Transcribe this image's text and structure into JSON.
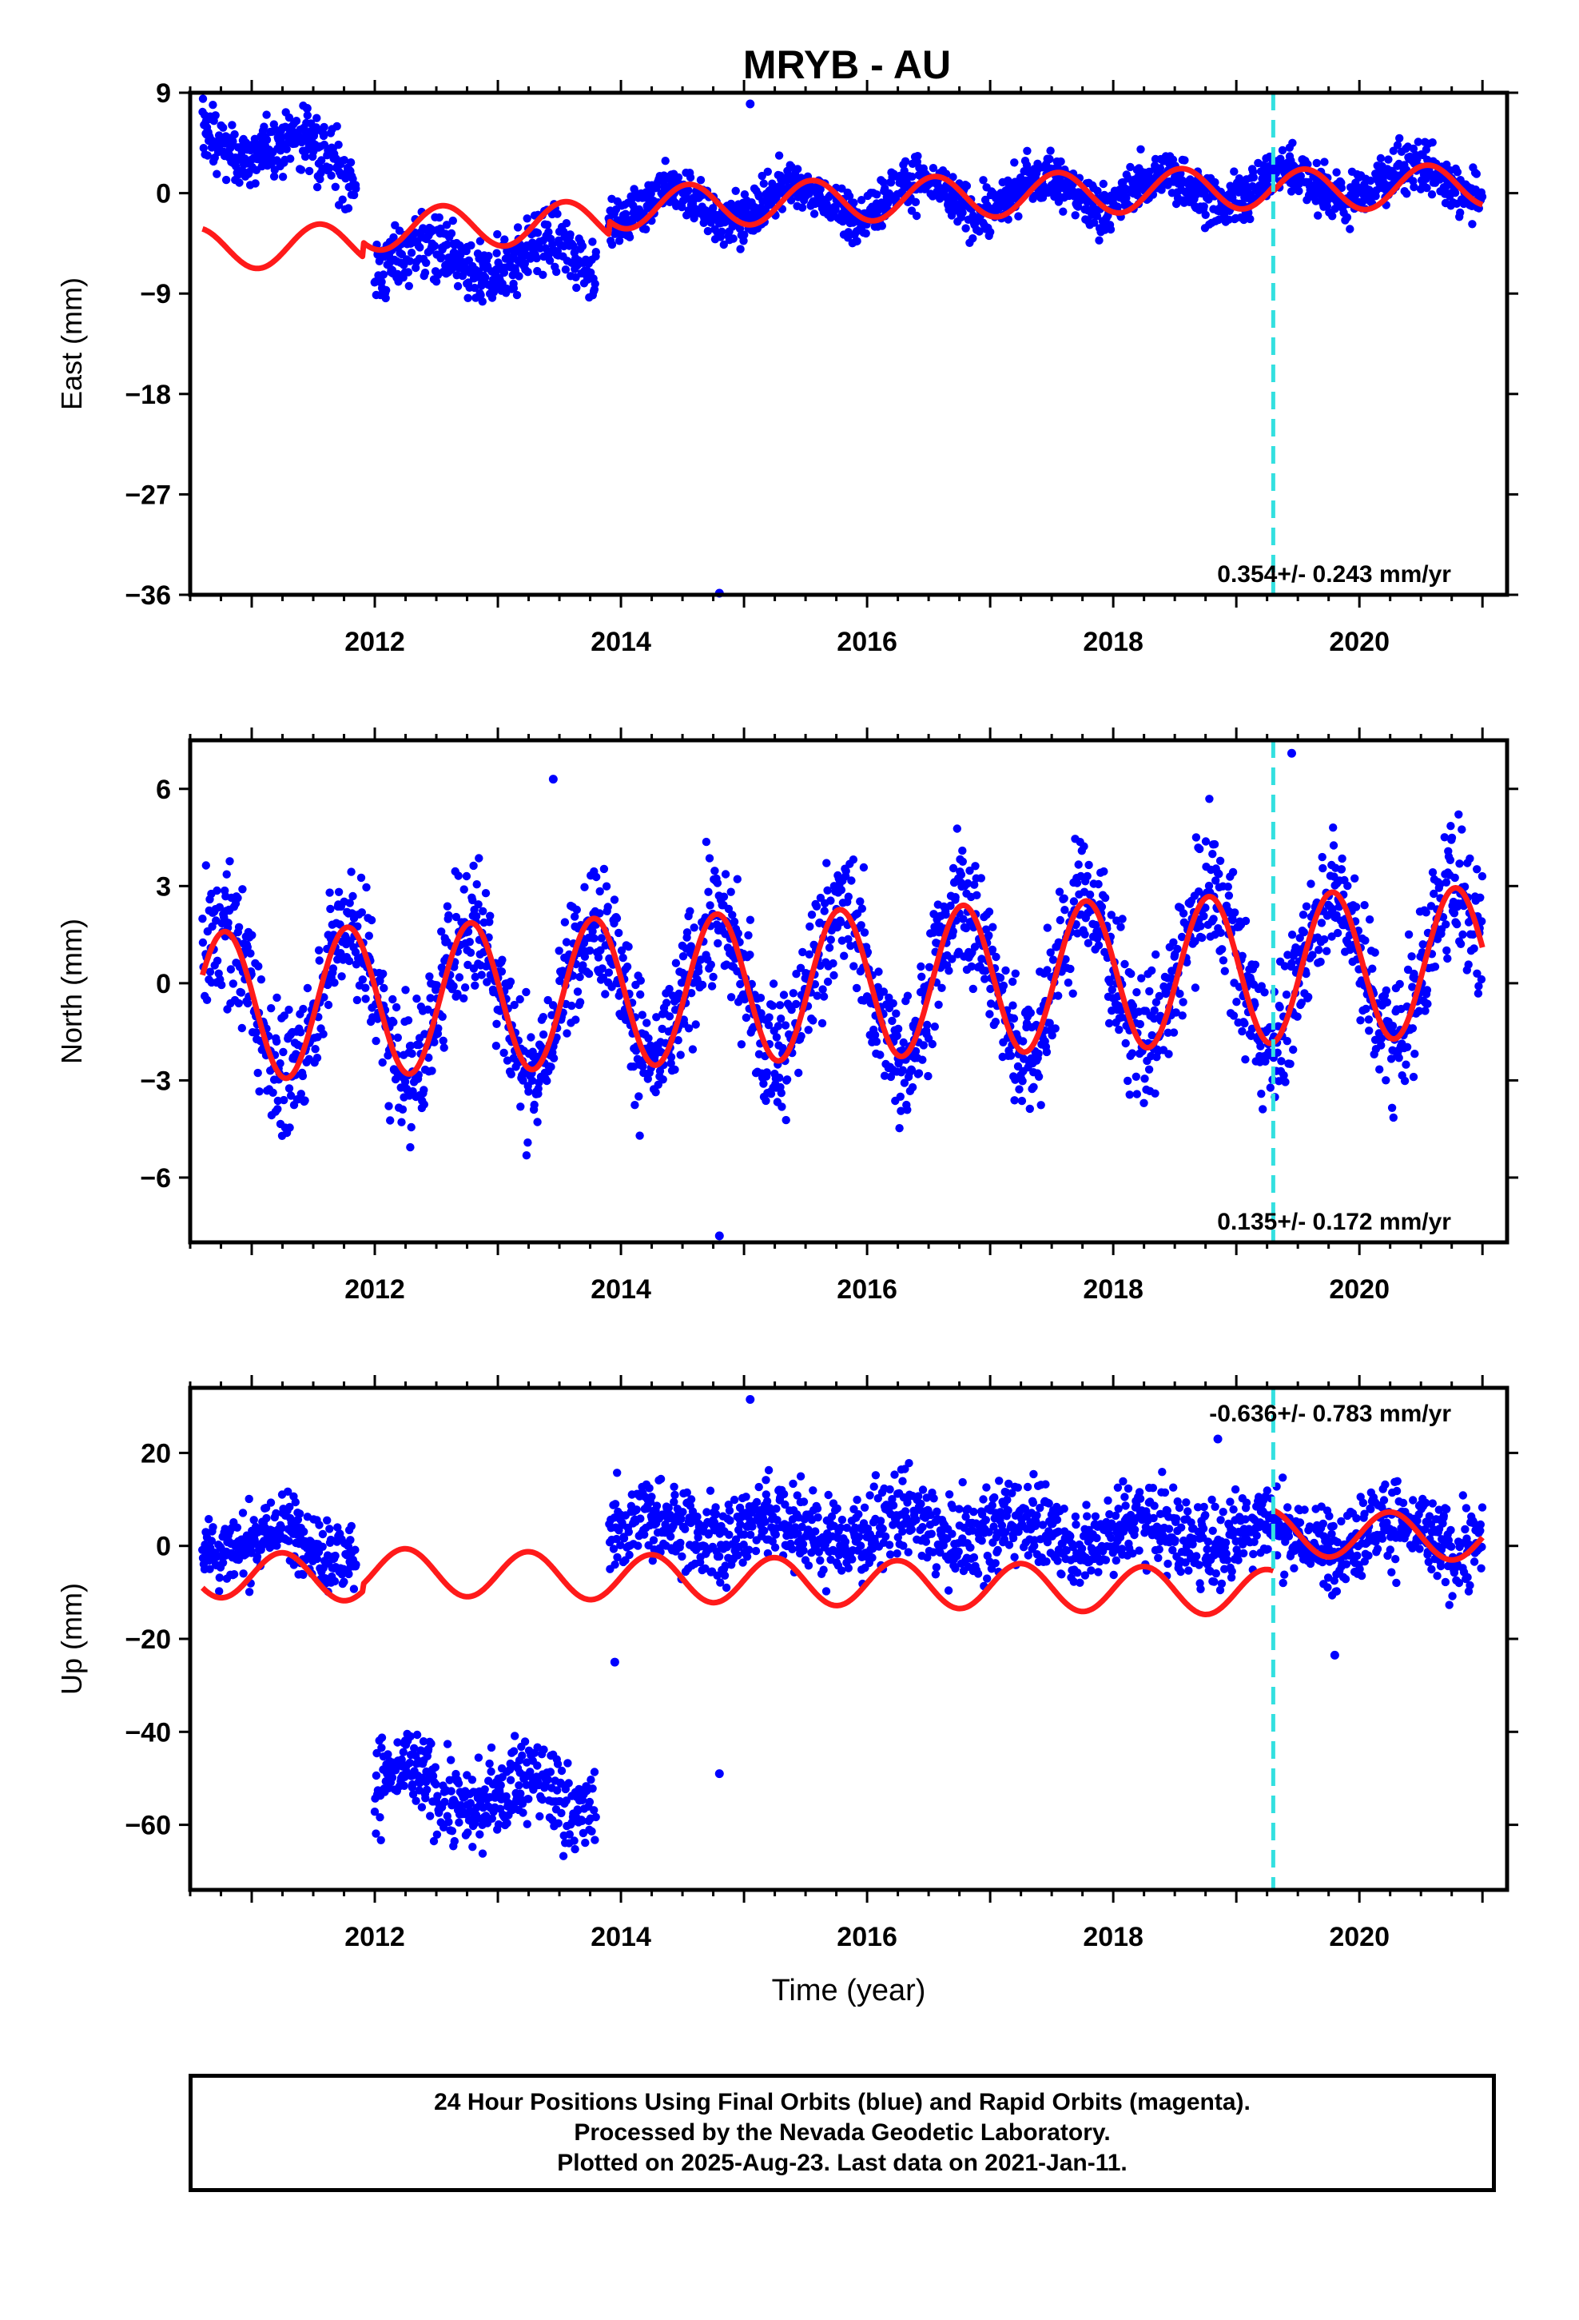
{
  "title": "MRYB - AU",
  "colors": {
    "final_orbits": "#0000ff",
    "rapid_orbits": "#ff00ff",
    "model": "#ff1a1a",
    "offset": "#33e0e0",
    "frame": "#000000"
  },
  "chart_data": [
    {
      "type": "scatter",
      "component": "east",
      "ylabel": "East (mm)",
      "ylim": [
        -36,
        9
      ],
      "yticks": [
        9,
        0,
        -9,
        -18,
        -27,
        -36
      ],
      "xlim": [
        2010.5,
        2021.2
      ],
      "xticks": [
        2012,
        2014,
        2016,
        2018,
        2020
      ],
      "offset_epoch": 2019.3,
      "rate_label": "0.354+/- 0.243 mm/yr",
      "rate_position": "bottom-right",
      "segments": [
        {
          "x": [
            2010.6,
            2011.85
          ],
          "mean": 4.0,
          "slope": -2.3,
          "spread": 1.3
        },
        {
          "x": [
            2012.0,
            2013.8
          ],
          "mean": -6.0,
          "slope": 0.3,
          "spread": 1.4
        },
        {
          "x": [
            2013.9,
            2021.0
          ],
          "mean": 0.0,
          "slope": 0.354,
          "spread": 1.1
        }
      ],
      "seasonal": {
        "amplitude": 1.5,
        "phase_year": 0.15
      },
      "outliers": [
        {
          "x": 2015.05,
          "y": 8.0
        },
        {
          "x": 2014.8,
          "y": -36.0
        },
        {
          "x": 2011.45,
          "y": 7.6
        }
      ],
      "model": {
        "segments": [
          {
            "x": [
              2010.6,
              2019.3
            ],
            "offset": -0.6
          },
          {
            "x": [
              2019.3,
              2021.0
            ],
            "offset": -1.0
          }
        ],
        "rate": 0.354,
        "amplitude": 1.9,
        "phase_year": 0.3,
        "early_bias": [
          {
            "x": [
              2010.6,
              2011.9
            ],
            "value": -2.5
          },
          {
            "x": [
              2011.9,
              2013.9
            ],
            "value": -1.2
          }
        ]
      }
    },
    {
      "type": "scatter",
      "component": "north",
      "ylabel": "North (mm)",
      "ylim": [
        -8,
        7.5
      ],
      "yticks": [
        6,
        3,
        0,
        -3,
        -6
      ],
      "xlim": [
        2010.5,
        2021.2
      ],
      "xticks": [
        2012,
        2014,
        2016,
        2018,
        2020
      ],
      "offset_epoch": 2019.3,
      "rate_label": "0.135+/- 0.172 mm/yr",
      "rate_position": "bottom-right",
      "segments": [
        {
          "x": [
            2010.6,
            2021.0
          ],
          "mean": 0.0,
          "slope": 0.135,
          "spread": 1.0
        }
      ],
      "seasonal": {
        "amplitude": 2.3,
        "phase_year": 0.53
      },
      "outliers": [
        {
          "x": 2014.8,
          "y": -7.8
        },
        {
          "x": 2019.45,
          "y": 7.1
        },
        {
          "x": 2013.45,
          "y": 6.3
        }
      ],
      "model": {
        "segments": [
          {
            "x": [
              2010.6,
              2019.3
            ],
            "offset": 0.0
          },
          {
            "x": [
              2019.3,
              2021.0
            ],
            "offset": 0.0
          }
        ],
        "rate": 0.135,
        "amplitude": 2.3,
        "phase_year": 0.53,
        "early_bias": []
      }
    },
    {
      "type": "scatter",
      "component": "up",
      "ylabel": "Up (mm)",
      "ylim": [
        -74,
        34
      ],
      "yticks": [
        20,
        0,
        -20,
        -40,
        -60
      ],
      "xlim": [
        2010.5,
        2021.2
      ],
      "xticks": [
        2012,
        2014,
        2016,
        2018,
        2020
      ],
      "xlabel": "Time (year)",
      "offset_epoch": 2019.3,
      "rate_label": "-0.636+/- 0.783 mm/yr",
      "rate_position": "top-right",
      "segments": [
        {
          "x": [
            2010.6,
            2011.85
          ],
          "mean": 1.0,
          "slope": -2.0,
          "spread": 4.0
        },
        {
          "x": [
            2012.0,
            2013.8
          ],
          "mean": -53.0,
          "slope": -2.0,
          "spread": 4.5
        },
        {
          "x": [
            2013.9,
            2021.0
          ],
          "mean": 3.0,
          "slope": -0.3,
          "spread": 4.5
        }
      ],
      "seasonal": {
        "amplitude": 3.0,
        "phase_year": 0.0
      },
      "outliers": [
        {
          "x": 2015.05,
          "y": 31.5
        },
        {
          "x": 2013.95,
          "y": -25.0
        },
        {
          "x": 2014.8,
          "y": -49.0
        },
        {
          "x": 2019.8,
          "y": -23.5
        },
        {
          "x": 2018.85,
          "y": 23.0
        }
      ],
      "model": {
        "segments": [
          {
            "x": [
              2010.6,
              2019.3
            ],
            "offset": -8.0
          },
          {
            "x": [
              2019.3,
              2021.0
            ],
            "offset": 5.0
          }
        ],
        "rate": -0.636,
        "amplitude": 5.0,
        "phase_year": 0.0,
        "early_bias": [
          {
            "x": [
              2010.6,
              2011.9
            ],
            "value": -1.5
          }
        ]
      }
    }
  ],
  "caption": {
    "line1": "24 Hour Positions Using Final Orbits (blue) and Rapid Orbits (magenta).",
    "line2": "Processed by the Nevada Geodetic Laboratory.",
    "line3": "Plotted on 2025-Aug-23. Last data on 2021-Jan-11."
  }
}
